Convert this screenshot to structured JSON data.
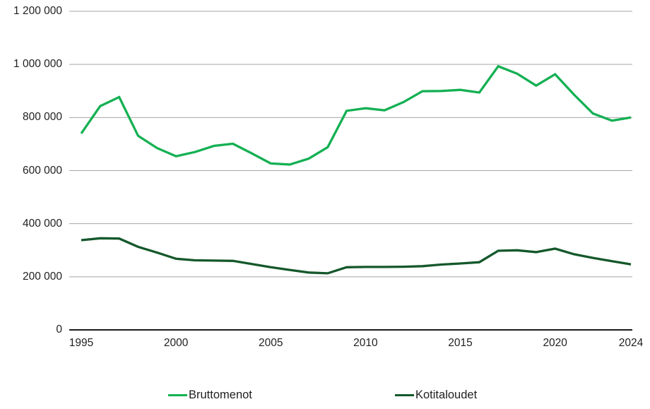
{
  "chart_data": {
    "type": "line",
    "title": "",
    "xlabel": "",
    "ylabel": "",
    "grid": true,
    "legend_position": "bottom",
    "ylim": [
      0,
      1200000
    ],
    "ytick_step": 200000,
    "ytick_values": [
      0,
      200000,
      400000,
      600000,
      800000,
      1000000,
      1200000
    ],
    "ytick_labels": [
      "0",
      "200 000",
      "400 000",
      "600 000",
      "800 000",
      "1 000 000",
      "1 200 000"
    ],
    "xtick_values": [
      1995,
      2000,
      2005,
      2010,
      2015,
      2020,
      2024
    ],
    "xtick_labels": [
      "1995",
      "2000",
      "2005",
      "2010",
      "2015",
      "2020",
      "2024"
    ],
    "x": [
      1995,
      1996,
      1997,
      1998,
      1999,
      2000,
      2001,
      2002,
      2003,
      2004,
      2005,
      2006,
      2007,
      2008,
      2009,
      2010,
      2011,
      2012,
      2013,
      2014,
      2015,
      2016,
      2017,
      2018,
      2019,
      2020,
      2021,
      2022,
      2023,
      2024
    ],
    "series": [
      {
        "name": "Bruttomenot",
        "color": "#14b053",
        "values": [
          740000,
          843000,
          877000,
          731000,
          685000,
          654000,
          670000,
          693000,
          701000,
          665000,
          627000,
          623000,
          645000,
          688000,
          825000,
          835000,
          827000,
          858000,
          899000,
          900000,
          904000,
          894000,
          993000,
          965000,
          920000,
          963000,
          886000,
          815000,
          788000,
          800000
        ]
      },
      {
        "name": "Kotitaloudet",
        "color": "#14582b",
        "values": [
          338000,
          345000,
          344000,
          313000,
          291000,
          268000,
          262000,
          261000,
          260000,
          248000,
          236000,
          226000,
          216000,
          213000,
          236000,
          237000,
          237000,
          238000,
          240000,
          246000,
          250000,
          255000,
          298000,
          300000,
          293000,
          306000,
          285000,
          271000,
          259000,
          247000
        ]
      }
    ]
  },
  "style": {
    "gridline_color": "#a6a6a6",
    "axis_color": "#1a1a1a",
    "text_color": "#1f1f1f",
    "background": "#ffffff"
  }
}
